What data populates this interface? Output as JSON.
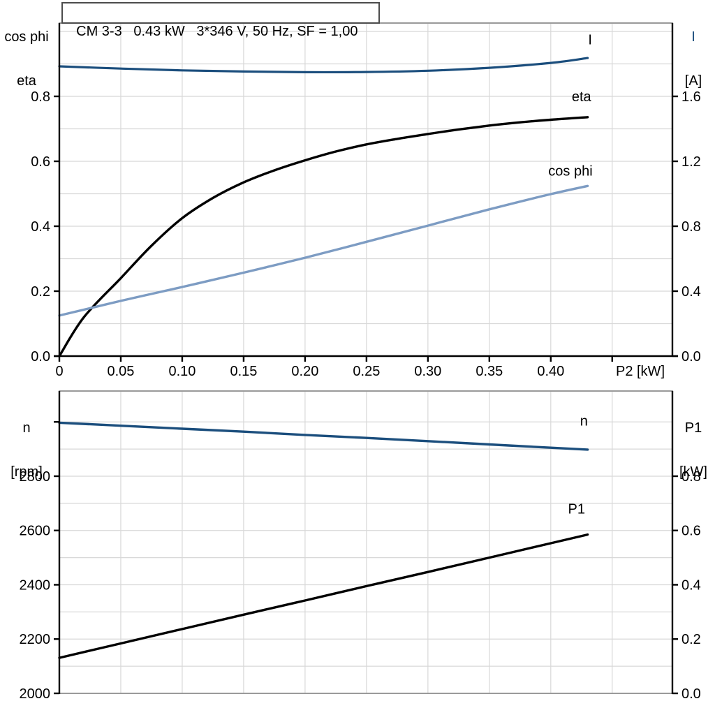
{
  "header": {
    "title": "CM 3-3   0.43 kW   3*346 V, 50 Hz, SF = 1,00"
  },
  "colors": {
    "dark_blue": "#1b4e7d",
    "light_blue": "#7d9cc3",
    "black": "#000000",
    "grid": "#d8d8d8",
    "frame": "#9a9a9a",
    "axis": "#000000",
    "title_border": "#4c4c4c"
  },
  "chart_data": [
    {
      "type": "line",
      "title": "CM 3-3   0.43 kW   3*346 V, 50 Hz, SF = 1,00",
      "x_axis": {
        "label": "P2 [kW]",
        "min": 0,
        "max": 0.499,
        "line_style": "axis",
        "grid": [
          0.05,
          0.1,
          0.15,
          0.2,
          0.25,
          0.3,
          0.35,
          0.4,
          0.45
        ],
        "ticks": [
          {
            "v": 0,
            "t": "0"
          },
          {
            "v": 0.05,
            "t": "0.05"
          },
          {
            "v": 0.1,
            "t": "0.10"
          },
          {
            "v": 0.15,
            "t": "0.15"
          },
          {
            "v": 0.2,
            "t": "0.20"
          },
          {
            "v": 0.25,
            "t": "0.25"
          },
          {
            "v": 0.3,
            "t": "0.30"
          },
          {
            "v": 0.35,
            "t": "0.35"
          },
          {
            "v": 0.4,
            "t": "0.40"
          },
          {
            "v": 0.45,
            "t": ""
          }
        ]
      },
      "left_axis": {
        "title_lines": [
          "cos phi",
          "eta"
        ],
        "min": 0,
        "max": 1.0258,
        "grid": [
          0.1,
          0.2,
          0.3,
          0.4,
          0.5,
          0.6,
          0.7,
          0.8,
          0.9,
          1.0
        ],
        "ticks": [
          {
            "v": 0.0,
            "t": "0.0"
          },
          {
            "v": 0.2,
            "t": "0.2"
          },
          {
            "v": 0.4,
            "t": "0.4"
          },
          {
            "v": 0.6,
            "t": "0.6"
          },
          {
            "v": 0.8,
            "t": "0.8"
          }
        ]
      },
      "right_axis": {
        "title_lines": [
          "I",
          "[A]"
        ],
        "min": 0,
        "max": 2.0516,
        "ticks": [
          {
            "v": 0.0,
            "t": "0.0"
          },
          {
            "v": 0.4,
            "t": "0.4"
          },
          {
            "v": 0.8,
            "t": "0.8"
          },
          {
            "v": 1.2,
            "t": "1.2"
          },
          {
            "v": 1.6,
            "t": "1.6"
          }
        ]
      },
      "series": [
        {
          "name": "I",
          "axis": "right",
          "color": "dark_blue",
          "width": 3.2,
          "label": {
            "text": "I",
            "x": 0.432,
            "v": 1.92,
            "color": "dark_blue"
          },
          "points": [
            [
              0,
              1.785
            ],
            [
              0.05,
              1.771
            ],
            [
              0.1,
              1.76
            ],
            [
              0.15,
              1.753
            ],
            [
              0.2,
              1.749
            ],
            [
              0.25,
              1.75
            ],
            [
              0.3,
              1.758
            ],
            [
              0.35,
              1.776
            ],
            [
              0.4,
              1.806
            ],
            [
              0.43,
              1.836
            ]
          ]
        },
        {
          "name": "eta",
          "axis": "left",
          "color": "black",
          "width": 3.4,
          "label": {
            "text": "eta",
            "x": 0.425,
            "v": 0.785,
            "color": "black"
          },
          "points": [
            [
              0,
              0
            ],
            [
              0.02,
              0.12
            ],
            [
              0.05,
              0.24
            ],
            [
              0.075,
              0.34
            ],
            [
              0.1,
              0.425
            ],
            [
              0.125,
              0.487
            ],
            [
              0.15,
              0.535
            ],
            [
              0.175,
              0.572
            ],
            [
              0.2,
              0.603
            ],
            [
              0.225,
              0.63
            ],
            [
              0.25,
              0.652
            ],
            [
              0.275,
              0.669
            ],
            [
              0.3,
              0.684
            ],
            [
              0.325,
              0.698
            ],
            [
              0.35,
              0.71
            ],
            [
              0.375,
              0.72
            ],
            [
              0.4,
              0.728
            ],
            [
              0.43,
              0.736
            ]
          ]
        },
        {
          "name": "cos phi",
          "axis": "left",
          "color": "light_blue",
          "width": 3.4,
          "label": {
            "text": "cos phi",
            "x": 0.416,
            "v": 0.556,
            "color": "light_blue"
          },
          "points": [
            [
              0,
              0.125
            ],
            [
              0.05,
              0.17
            ],
            [
              0.1,
              0.213
            ],
            [
              0.15,
              0.257
            ],
            [
              0.2,
              0.303
            ],
            [
              0.25,
              0.352
            ],
            [
              0.3,
              0.402
            ],
            [
              0.35,
              0.452
            ],
            [
              0.4,
              0.499
            ],
            [
              0.43,
              0.524
            ]
          ]
        }
      ]
    },
    {
      "type": "line",
      "title": "",
      "x_axis": {
        "label": "",
        "min": 0,
        "max": 0.499,
        "line_style": "frame",
        "grid": [
          0.05,
          0.1,
          0.15,
          0.2,
          0.25,
          0.3,
          0.35,
          0.4,
          0.45
        ],
        "ticks": []
      },
      "left_axis": {
        "title_lines": [
          "n",
          "[rpm]"
        ],
        "min": 2000,
        "max": 3113.8,
        "grid": [
          2100,
          2200,
          2300,
          2400,
          2500,
          2600,
          2700,
          2800,
          2900,
          3000
        ],
        "ticks": [
          {
            "v": 2000,
            "t": "2000"
          },
          {
            "v": 2200,
            "t": "2200"
          },
          {
            "v": 2400,
            "t": "2400"
          },
          {
            "v": 2600,
            "t": "2600"
          },
          {
            "v": 2800,
            "t": "2800"
          },
          {
            "v": 3000,
            "t": ""
          }
        ]
      },
      "right_axis": {
        "title_lines": [
          "P1",
          "[kW]"
        ],
        "min": 0,
        "max": 1.1138,
        "ticks": [
          {
            "v": 0.0,
            "t": "0.0"
          },
          {
            "v": 0.2,
            "t": "0.2"
          },
          {
            "v": 0.4,
            "t": "0.4"
          },
          {
            "v": 0.6,
            "t": "0.6"
          },
          {
            "v": 0.8,
            "t": "0.8"
          }
        ]
      },
      "series": [
        {
          "name": "n",
          "axis": "left",
          "color": "dark_blue",
          "width": 3.4,
          "label": {
            "text": "n",
            "x": 0.427,
            "v": 2986,
            "color": "dark_blue"
          },
          "points": [
            [
              0,
              2997
            ],
            [
              0.05,
              2986
            ],
            [
              0.1,
              2975
            ],
            [
              0.15,
              2964
            ],
            [
              0.2,
              2952
            ],
            [
              0.25,
              2941
            ],
            [
              0.3,
              2929
            ],
            [
              0.35,
              2917
            ],
            [
              0.4,
              2905
            ],
            [
              0.43,
              2898
            ]
          ]
        },
        {
          "name": "P1",
          "axis": "right",
          "color": "black",
          "width": 3.4,
          "label": {
            "text": "P1",
            "x": 0.421,
            "v": 0.663,
            "color": "black"
          },
          "points": [
            [
              0,
              0.131
            ],
            [
              0.05,
              0.184
            ],
            [
              0.1,
              0.237
            ],
            [
              0.15,
              0.29
            ],
            [
              0.2,
              0.342
            ],
            [
              0.25,
              0.395
            ],
            [
              0.3,
              0.447
            ],
            [
              0.35,
              0.5
            ],
            [
              0.4,
              0.553
            ],
            [
              0.43,
              0.585
            ]
          ]
        }
      ]
    }
  ]
}
